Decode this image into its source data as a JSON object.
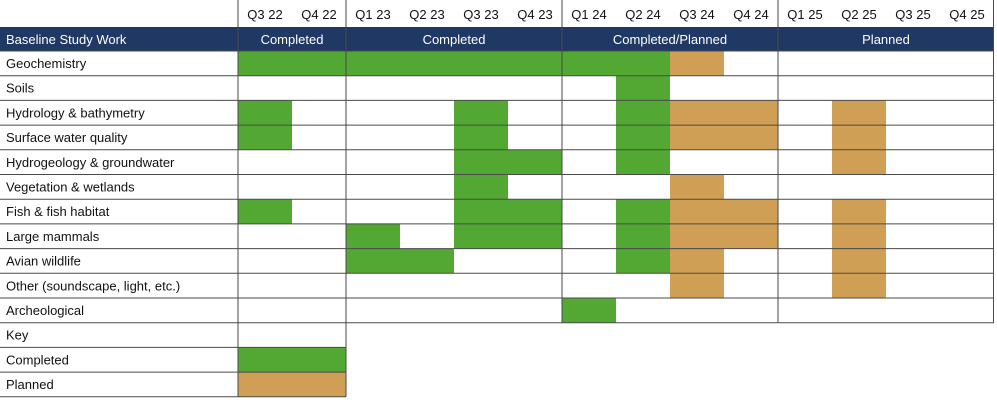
{
  "chart_data": {
    "type": "table",
    "quarters": [
      "Q3 22",
      "Q4 22",
      "Q1 23",
      "Q2 23",
      "Q3 23",
      "Q4 23",
      "Q1 24",
      "Q2 24",
      "Q3 24",
      "Q4 24",
      "Q1 25",
      "Q2 25",
      "Q3 25",
      "Q4 25"
    ],
    "header": {
      "title": "Baseline Study Work",
      "groups": [
        {
          "label": "Completed",
          "start": 0,
          "end": 1
        },
        {
          "label": "Completed",
          "start": 2,
          "end": 5
        },
        {
          "label": "Completed/Planned",
          "start": 6,
          "end": 9
        },
        {
          "label": "Planned",
          "start": 10,
          "end": 13
        }
      ]
    },
    "rows": [
      {
        "label": "Geochemistry",
        "completed": [
          0,
          1,
          2,
          3,
          4,
          5,
          6,
          7
        ],
        "planned": [
          8
        ]
      },
      {
        "label": "Soils",
        "completed": [
          7
        ],
        "planned": []
      },
      {
        "label": "Hydrology & bathymetry",
        "completed": [
          0,
          4,
          7
        ],
        "planned": [
          8,
          9,
          11
        ]
      },
      {
        "label": "Surface water quality",
        "completed": [
          0,
          4,
          7
        ],
        "planned": [
          8,
          9,
          11
        ]
      },
      {
        "label": "Hydrogeology & groundwater",
        "completed": [
          4,
          5,
          7
        ],
        "planned": [
          11
        ]
      },
      {
        "label": "Vegetation & wetlands",
        "completed": [
          4
        ],
        "planned": [
          8
        ]
      },
      {
        "label": "Fish & fish habitat",
        "completed": [
          0,
          4,
          5,
          7
        ],
        "planned": [
          8,
          9,
          11
        ]
      },
      {
        "label": "Large mammals",
        "completed": [
          2,
          4,
          5,
          7
        ],
        "planned": [
          8,
          9,
          11
        ]
      },
      {
        "label": "Avian wildlife",
        "completed": [
          2,
          3,
          7
        ],
        "planned": [
          8,
          11
        ]
      },
      {
        "label": "Other (soundscape, light, etc.)",
        "completed": [],
        "planned": [
          8,
          11
        ]
      },
      {
        "label": "Archeological",
        "completed": [
          6
        ],
        "planned": []
      }
    ],
    "key": {
      "title": "Key",
      "items": [
        {
          "label": "Completed",
          "status": "completed"
        },
        {
          "label": "Planned",
          "status": "planned"
        }
      ]
    },
    "colors": {
      "completed": "#52a832",
      "planned": "#cf9f55",
      "header_bg": "#1f3864",
      "grid": "#4a4a4a"
    }
  }
}
